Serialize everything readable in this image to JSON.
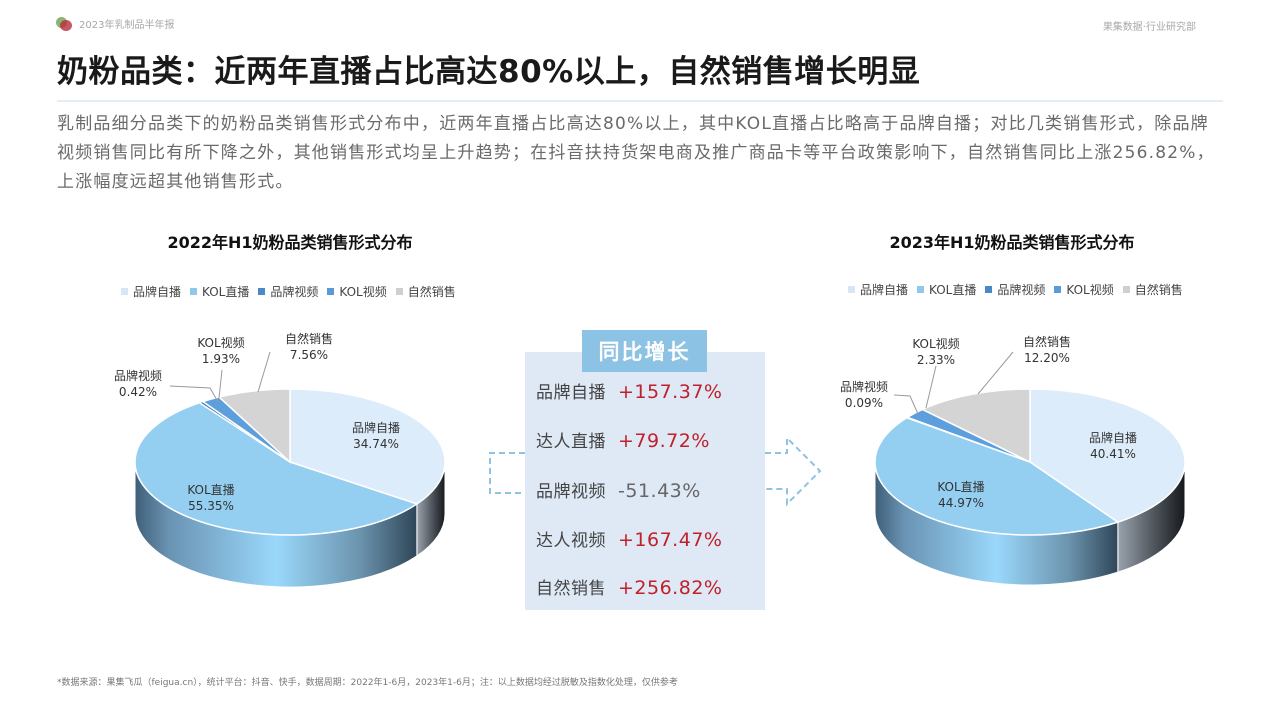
{
  "header": {
    "report_name": "2023年乳制品半年报",
    "publisher": "果集数据·行业研究部"
  },
  "page_title": "奶粉品类：近两年直播占比高达80%以上，自然销售增长明显",
  "summary": "乳制品细分品类下的奶粉品类销售形式分布中，近两年直播占比高达80%以上，其中KOL直播占比略高于品牌自播；对比几类销售形式，除品牌视频销售同比有所下降之外，其他销售形式均呈上升趋势；在抖音扶持货架电商及推广商品卡等平台政策影响下，自然销售同比上涨256.82%，上涨幅度远超其他销售形式。",
  "legend": [
    {
      "label": "品牌自播",
      "color": "#d6e6f5"
    },
    {
      "label": "KOL直播",
      "color": "#8ec9ec"
    },
    {
      "label": "品牌视频",
      "color": "#4a88c7"
    },
    {
      "label": "KOL视频",
      "color": "#5a9bd5"
    },
    {
      "label": "自然销售",
      "color": "#cfcfcf"
    }
  ],
  "colors": {
    "brand_live": "#dcecfb",
    "kol_live": "#94cff1",
    "brand_video": "#2f6fb3",
    "kol_video": "#5d9fdc",
    "natural": "#d4d4d4",
    "positive": "#c0202a",
    "negative": "#666666",
    "badge": "#8cc2e3",
    "box": "#dee9f5"
  },
  "chart_data": [
    {
      "type": "pie",
      "title": "2022年H1奶粉品类销售形式分布",
      "categories": [
        "品牌自播",
        "KOL直播",
        "品牌视频",
        "KOL视频",
        "自然销售"
      ],
      "values": [
        34.74,
        55.35,
        0.42,
        1.93,
        7.56
      ],
      "value_labels": [
        "34.74%",
        "55.35%",
        "0.42%",
        "1.93%",
        "7.56%"
      ],
      "legend_position": "top",
      "style": "3d"
    },
    {
      "type": "pie",
      "title": "2023年H1奶粉品类销售形式分布",
      "categories": [
        "品牌自播",
        "KOL直播",
        "品牌视频",
        "KOL视频",
        "自然销售"
      ],
      "values": [
        40.41,
        44.97,
        0.09,
        2.33,
        12.2
      ],
      "value_labels": [
        "40.41%",
        "44.97%",
        "0.09%",
        "2.33%",
        "12.20%"
      ],
      "legend_position": "top",
      "style": "3d"
    },
    {
      "type": "table",
      "title": "同比增长",
      "categories": [
        "品牌自播",
        "达人直播",
        "品牌视频",
        "达人视频",
        "自然销售"
      ],
      "values": [
        157.37,
        79.72,
        -51.43,
        167.47,
        256.82
      ],
      "value_labels": [
        "+157.37%",
        "+79.72%",
        "-51.43%",
        "+167.47%",
        "+256.82%"
      ]
    }
  ],
  "yoy": {
    "title": "同比增长",
    "rows": [
      {
        "label": "品牌自播",
        "value": "+157.37%",
        "positive": true
      },
      {
        "label": "达人直播",
        "value": "+79.72%",
        "positive": true
      },
      {
        "label": "品牌视频",
        "value": "-51.43%",
        "positive": false
      },
      {
        "label": "达人视频",
        "value": "+167.47%",
        "positive": true
      },
      {
        "label": "自然销售",
        "value": "+256.82%",
        "positive": true
      }
    ]
  },
  "footnote": "*数据来源：果集飞瓜（feigua.cn），统计平台：抖音、快手，数据周期：2022年1-6月，2023年1-6月；注：以上数据均经过脱敏及指数化处理，仅供参考"
}
